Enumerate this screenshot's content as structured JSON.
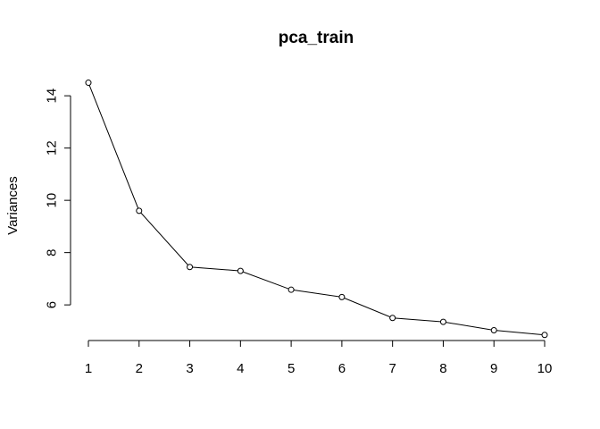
{
  "chart_data": {
    "type": "line",
    "title": "pca_train",
    "xlabel": "",
    "ylabel": "Variances",
    "x": [
      1,
      2,
      3,
      4,
      5,
      6,
      7,
      8,
      9,
      10
    ],
    "values": [
      14.5,
      9.6,
      7.45,
      7.3,
      6.58,
      6.3,
      5.5,
      5.35,
      5.03,
      4.85
    ],
    "xticks": [
      "1",
      "2",
      "3",
      "4",
      "5",
      "6",
      "7",
      "8",
      "9",
      "10"
    ],
    "yticks": [
      "6",
      "8",
      "10",
      "12",
      "14"
    ],
    "ylim": [
      4.5,
      15.1
    ],
    "grid": false,
    "point_style": "open-circle"
  }
}
